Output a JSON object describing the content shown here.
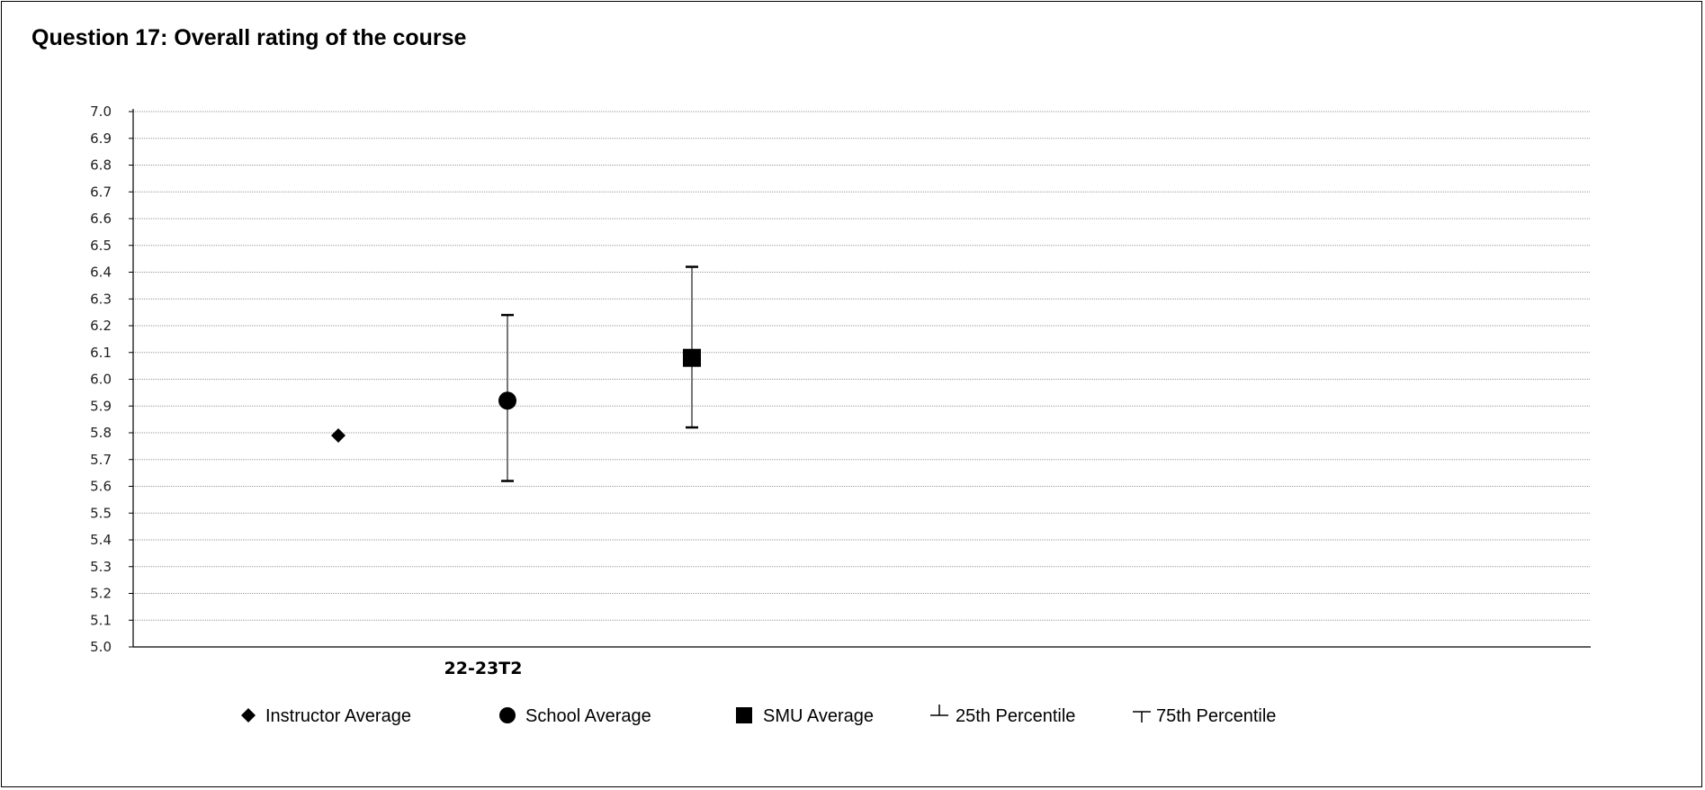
{
  "title": "Question 17: Overall rating of the course",
  "chart_data": {
    "type": "scatter",
    "categories": [
      "22-23T2"
    ],
    "ylim": [
      5.0,
      7.0
    ],
    "y_ticks": [
      "5.0",
      "5.1",
      "5.2",
      "5.3",
      "5.4",
      "5.5",
      "5.6",
      "5.7",
      "5.8",
      "5.9",
      "6.0",
      "6.1",
      "6.2",
      "6.3",
      "6.4",
      "6.5",
      "6.6",
      "6.7",
      "6.8",
      "6.9",
      "7.0"
    ],
    "grid": true,
    "legend_placement": "bottom",
    "series": [
      {
        "name": "Instructor Average",
        "marker": "diamond",
        "values": [
          5.79
        ]
      },
      {
        "name": "School Average",
        "marker": "circle",
        "values": [
          5.92
        ],
        "p25": [
          5.62
        ],
        "p75": [
          6.24
        ]
      },
      {
        "name": "SMU Average",
        "marker": "square",
        "values": [
          6.08
        ],
        "p25": [
          5.82
        ],
        "p75": [
          6.42
        ]
      }
    ],
    "legend": [
      {
        "label": "Instructor Average",
        "symbol": "diamond"
      },
      {
        "label": "School Average",
        "symbol": "circle"
      },
      {
        "label": "SMU Average",
        "symbol": "square"
      },
      {
        "label": "25th Percentile",
        "symbol": "p25"
      },
      {
        "label": "75th Percentile",
        "symbol": "p75"
      }
    ]
  }
}
